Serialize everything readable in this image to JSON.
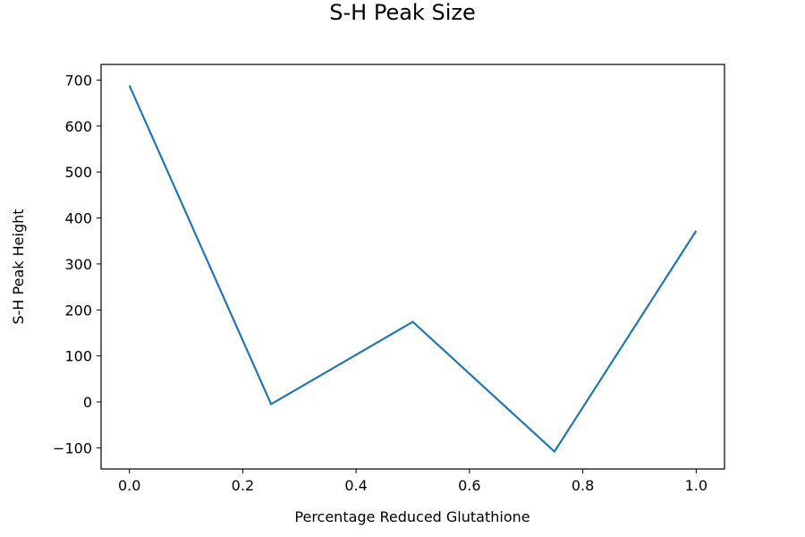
{
  "chart_data": {
    "type": "line",
    "title": "S-H Peak Size",
    "xlabel": "Percentage Reduced Glutathione",
    "ylabel": "S-H Peak Height",
    "xlim": [
      -0.05,
      1.05
    ],
    "ylim": [
      -146,
      734
    ],
    "x_ticks": [
      0.0,
      0.2,
      0.4,
      0.6,
      0.8,
      1.0
    ],
    "x_tick_labels": [
      "0.0",
      "0.2",
      "0.4",
      "0.6",
      "0.8",
      "1.0"
    ],
    "y_ticks": [
      -100,
      0,
      100,
      200,
      300,
      400,
      500,
      600,
      700
    ],
    "y_tick_labels": [
      "−100",
      "0",
      "100",
      "200",
      "300",
      "400",
      "500",
      "600",
      "700"
    ],
    "grid": false,
    "legend": "none",
    "series": [
      {
        "color": "#1f77b4",
        "x": [
          0.0,
          0.25,
          0.5,
          0.75,
          1.0
        ],
        "y": [
          688,
          -5,
          174,
          -108,
          372
        ]
      }
    ]
  }
}
